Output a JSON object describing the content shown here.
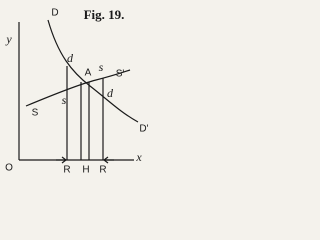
{
  "figure": {
    "title": "Fig. 19.",
    "axes": {
      "y": "y",
      "x": "x",
      "origin": "O"
    },
    "demand": {
      "start": "D",
      "end": "D'"
    },
    "supply": {
      "start": "S",
      "end": "S'"
    },
    "point": "A",
    "curve_marks": {
      "d_upper": "d",
      "s_upper": "s",
      "s_lower": "s",
      "d_lower": "d"
    },
    "base_labels": [
      "R",
      "H",
      "R"
    ]
  }
}
